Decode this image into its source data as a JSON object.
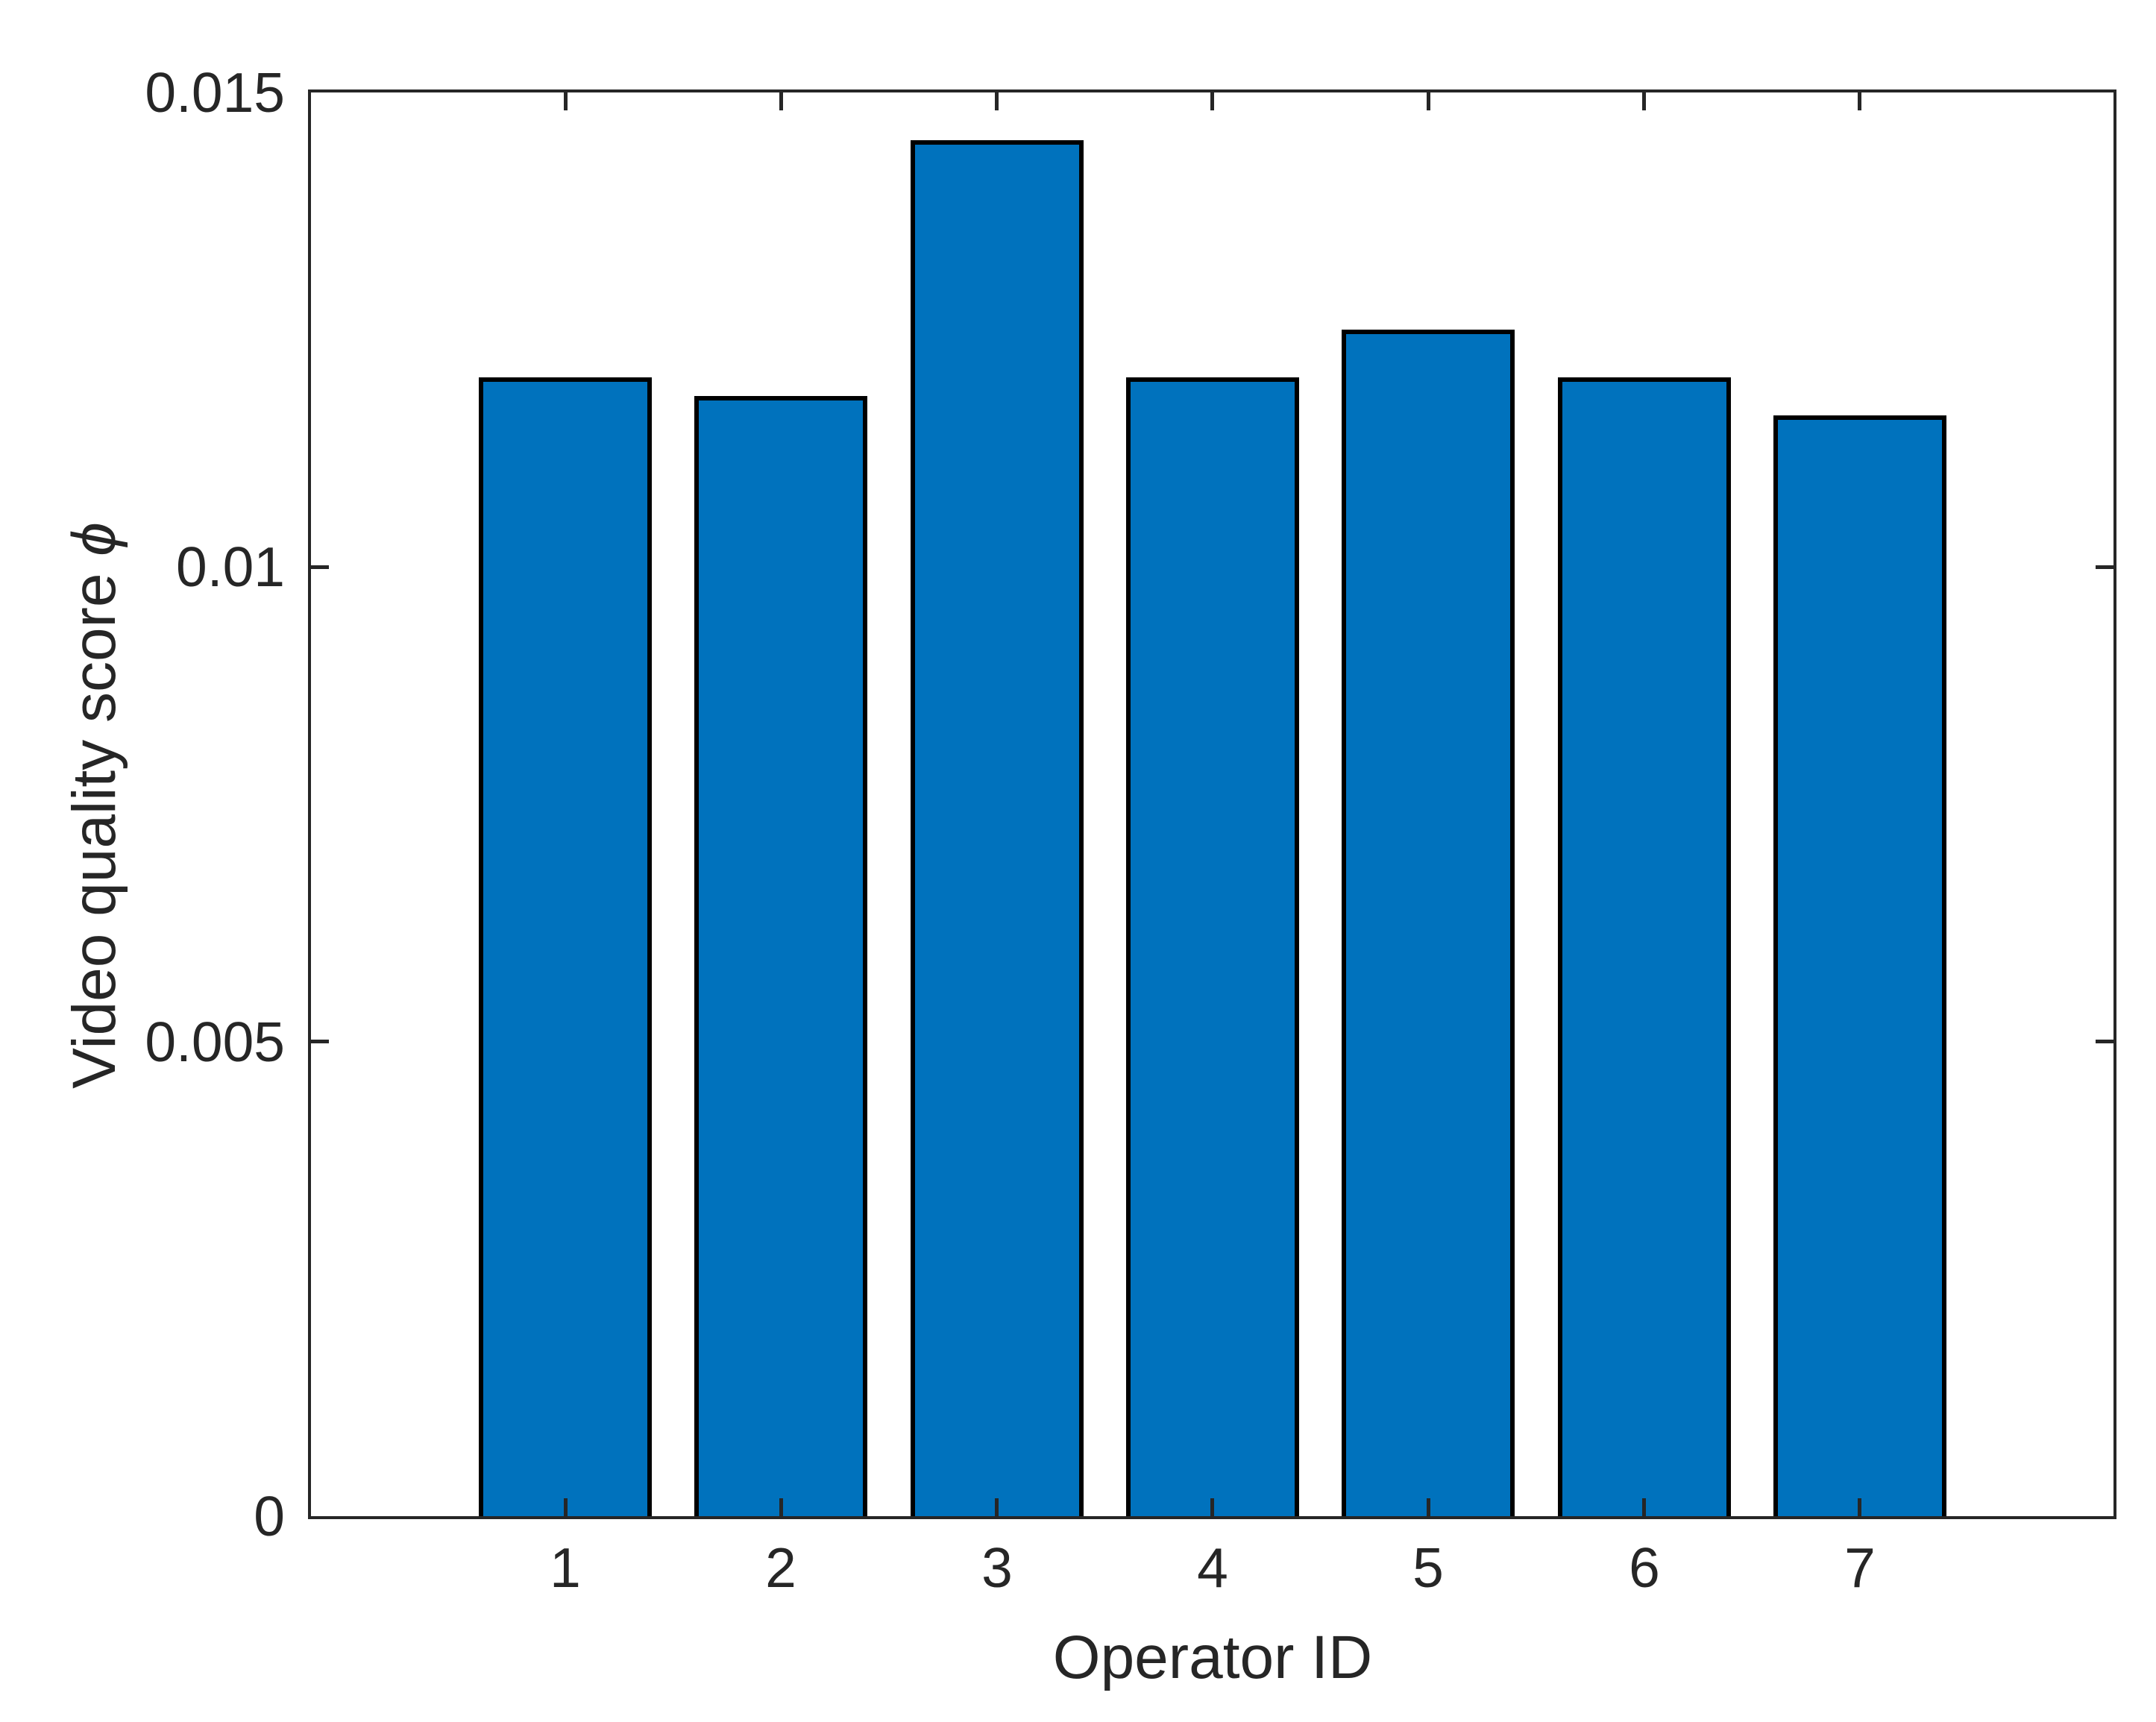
{
  "chart_data": {
    "type": "bar",
    "title": "",
    "xlabel": "Operator ID",
    "ylabel": "Video quality score ϕ",
    "ylabel_prefix": "Video quality score",
    "ylabel_symbol": "ϕ",
    "categories": [
      "1",
      "2",
      "3",
      "4",
      "5",
      "6",
      "7"
    ],
    "values": [
      0.012,
      0.0118,
      0.0145,
      0.012,
      0.0125,
      0.012,
      0.0116
    ],
    "ylim": [
      0,
      0.015
    ],
    "yticks": [
      {
        "value": 0,
        "label": "0"
      },
      {
        "value": 0.005,
        "label": "0.005"
      },
      {
        "value": 0.01,
        "label": "0.01"
      },
      {
        "value": 0.015,
        "label": "0.015"
      }
    ],
    "grid": false,
    "legend_position": "none",
    "tick_direction": "in",
    "bar_fill_color": "#0072BD",
    "bar_edge_color": "#000000",
    "axis_color": "#262626",
    "text_color": "#262626",
    "background_color": "#ffffff"
  }
}
